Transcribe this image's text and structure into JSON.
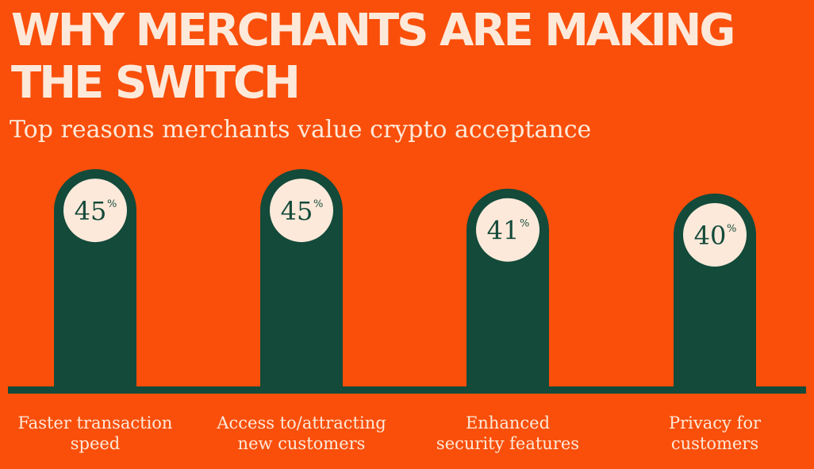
{
  "colors": {
    "background": "#f94f0a",
    "bar": "#134a3a",
    "badge": "#fde9da",
    "text_light": "#fde9da",
    "text_dark": "#134a3a"
  },
  "chart_data": {
    "type": "bar",
    "title": "WHY MERCHANTS ARE MAKING THE SWITCH",
    "subtitle": "Top reasons merchants value crypto acceptance",
    "categories": [
      "Faster transaction speed",
      "Access to/attracting new customers",
      "Enhanced security features",
      "Privacy for customers"
    ],
    "category_lines": [
      [
        "Faster transaction",
        "speed"
      ],
      [
        "Access to/attracting",
        "new customers"
      ],
      [
        "Enhanced",
        "security features"
      ],
      [
        "Privacy for",
        "customers"
      ]
    ],
    "values": [
      45,
      45,
      41,
      40
    ],
    "value_labels": [
      "45",
      "45",
      "41",
      "40"
    ],
    "unit": "%",
    "ylim": [
      0,
      52
    ],
    "xlabel": "",
    "ylabel": "",
    "grid": false
  }
}
